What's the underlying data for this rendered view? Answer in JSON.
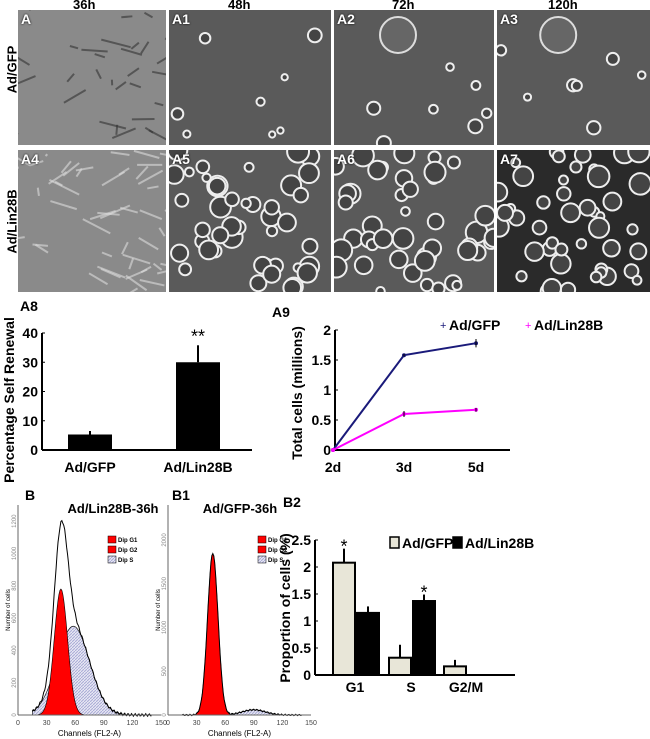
{
  "columns": [
    "36h",
    "48h",
    "72h",
    "120h"
  ],
  "rows": [
    "Ad/GFP",
    "Ad/Lin28B"
  ],
  "panels": [
    [
      "A",
      "A1",
      "A2",
      "A3"
    ],
    [
      "A4",
      "A5",
      "A6",
      "A7"
    ]
  ],
  "colors": {
    "gfp_line": "#1a1a7a",
    "lin_line": "#ff00ff",
    "g1_fill": "#ff0000",
    "s_fill": "#a9abd6",
    "gfp_bar": "#e8e6d8",
    "lin_bar": "#000000"
  },
  "chart_data": [
    {
      "id": "A8",
      "type": "bar",
      "label": "A8",
      "categories": [
        "Ad/GFP",
        "Ad/Lin28B"
      ],
      "values": [
        5.3,
        30
      ],
      "errors": [
        1.2,
        5.8
      ],
      "annotations": [
        "",
        "**"
      ],
      "ylabel": "Percentage Self Renewal",
      "ylim": [
        0,
        40
      ],
      "yticks": [
        "0",
        "10",
        "20",
        "30",
        "40"
      ]
    },
    {
      "id": "A9",
      "type": "line",
      "label": "A9",
      "categories": [
        "2d",
        "3d",
        "5d"
      ],
      "series": [
        {
          "name": "Ad/GFP",
          "values": [
            0,
            1.58,
            1.78
          ],
          "errors": [
            0,
            0.02,
            0.07
          ]
        },
        {
          "name": "Ad/Lin28B",
          "values": [
            0,
            0.6,
            0.67
          ],
          "errors": [
            0,
            0.05,
            0.03
          ]
        }
      ],
      "ylabel": "Total cells (millions)",
      "ylim": [
        0,
        2
      ],
      "yticks": [
        "0",
        "0.5",
        "1",
        "1.5",
        "2"
      ],
      "legend": "top-right"
    },
    {
      "id": "B",
      "type": "area",
      "label": "B",
      "title": "Ad/Lin28B-36h",
      "xlabel": "Channels (FL2-A)",
      "ylabel": "Number of cells",
      "xlim": [
        0,
        150
      ],
      "xticks": [
        "0",
        "30",
        "60",
        "90",
        "120",
        "150"
      ],
      "ylim": [
        0,
        1300
      ],
      "yticks": [
        "0",
        "200",
        "400",
        "600",
        "800",
        "1000",
        "1200"
      ],
      "legend": [
        "Dip G1",
        "Dip G2",
        "Dip S"
      ],
      "components": {
        "g1": {
          "center": 45,
          "sd": 7,
          "peak": 780
        },
        "s": {
          "center": 58,
          "sd": 17,
          "peak": 550
        }
      }
    },
    {
      "id": "B1",
      "type": "area",
      "label": "B1",
      "title": "Ad/GFP-36h",
      "xlabel": "Channels (FL2-A)",
      "ylabel": "Number of cells",
      "xlim": [
        0,
        150
      ],
      "xticks": [
        "0",
        "30",
        "60",
        "90",
        "120",
        "150"
      ],
      "ylim": [
        0,
        2400
      ],
      "yticks": [
        "0",
        "500",
        "1000",
        "1500",
        "2000"
      ],
      "legend": [
        "Dip G1",
        "Dip G2",
        "Dip S"
      ],
      "components": {
        "g1": {
          "center": 47,
          "sd": 5.5,
          "peak": 1850
        },
        "s": {
          "center": 90,
          "sd": 12,
          "peak": 60
        }
      }
    },
    {
      "id": "B2",
      "type": "bar",
      "label": "B2",
      "categories": [
        "G1",
        "S",
        "G2/M"
      ],
      "series": [
        {
          "name": "Ad/GFP",
          "values": [
            2.08,
            0.32,
            0.16
          ],
          "errors": [
            0.26,
            0.24,
            0.12
          ]
        },
        {
          "name": "Ad/Lin28B",
          "values": [
            1.15,
            1.37,
            0
          ],
          "errors": [
            0.12,
            0.12,
            0
          ]
        }
      ],
      "annotations": [
        [
          "*",
          ""
        ],
        [
          "",
          "*"
        ],
        [
          "",
          ""
        ]
      ],
      "ylabel": "Proportion of cells (%)",
      "ylim": [
        0,
        2.5
      ],
      "yticks": [
        "0",
        "0.5",
        "1",
        "1.5",
        "2",
        "2.5"
      ],
      "legend": "top-right"
    }
  ]
}
